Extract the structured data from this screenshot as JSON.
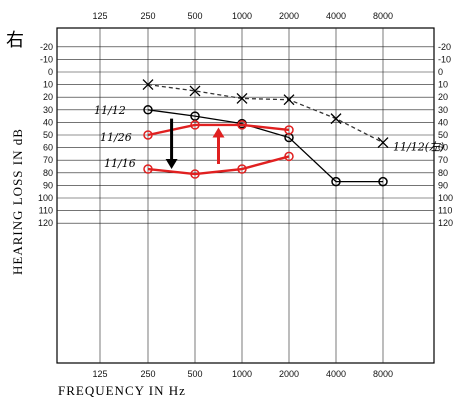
{
  "chart_data": {
    "type": "line",
    "ear_mark": "右",
    "xlabel": "FREQUENCY IN Hz",
    "ylabel": "HEARING LOSS IN dB",
    "x_ticks": [
      "125",
      "250",
      "500",
      "1000",
      "2000",
      "4000",
      "8000"
    ],
    "y_ticks": [
      -20,
      -10,
      0,
      10,
      20,
      30,
      40,
      50,
      60,
      70,
      80,
      90,
      100,
      110,
      120
    ],
    "ylim": [
      -20,
      120
    ],
    "y_inverted": true,
    "x_scale": "log2",
    "grid": true,
    "series": [
      {
        "name": "11/12",
        "color": "#000000",
        "style": "solid",
        "marker": "circle",
        "x": [
          250,
          500,
          1000,
          2000,
          4000,
          8000
        ],
        "y": [
          30,
          35,
          41,
          52,
          87,
          87
        ]
      },
      {
        "name": "11/12(左)",
        "color": "#333333",
        "style": "dashed",
        "marker": "x",
        "x": [
          250,
          500,
          1000,
          2000,
          4000,
          8000
        ],
        "y": [
          10,
          15,
          21,
          22,
          37,
          56
        ]
      },
      {
        "name": "11/26",
        "color": "#e02020",
        "style": "solid",
        "marker": "circle",
        "x": [
          250,
          500,
          1000,
          2000
        ],
        "y": [
          50,
          42,
          42,
          46
        ]
      },
      {
        "name": "11/16",
        "color": "#e02020",
        "style": "solid",
        "marker": "circle",
        "x": [
          250,
          500,
          1000,
          2000
        ],
        "y": [
          77,
          81,
          77,
          67
        ]
      }
    ],
    "arrows": [
      {
        "color": "#000000",
        "x": 354,
        "from": 37,
        "to": 77
      },
      {
        "color": "#e02020",
        "x": 707,
        "from": 73,
        "to": 44
      }
    ]
  }
}
